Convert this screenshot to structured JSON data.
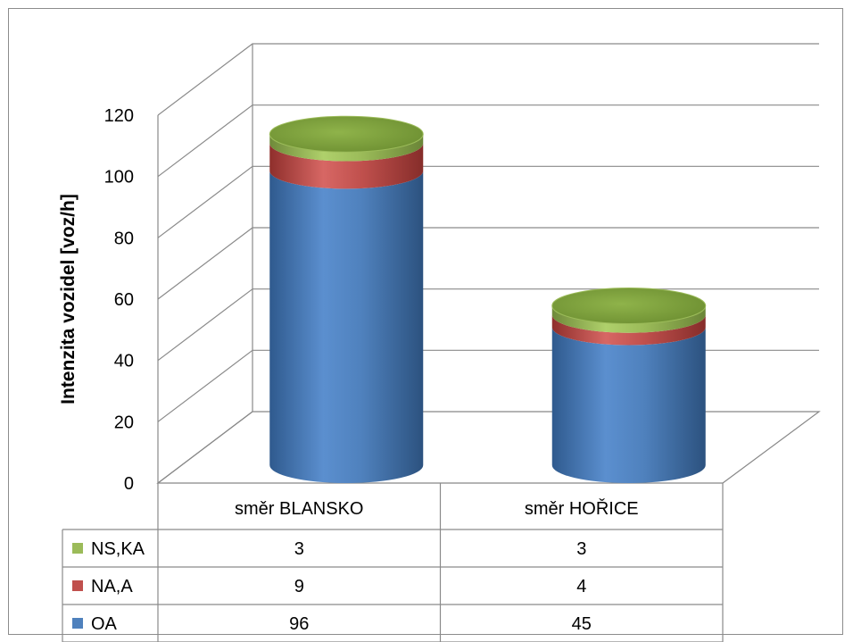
{
  "chart_data": {
    "type": "bar",
    "style": "3d-cylinder-stacked-with-data-table",
    "categories": [
      "směr BLANSKO",
      "směr HOŘICE"
    ],
    "series": [
      {
        "name": "OA",
        "values": [
          96,
          45
        ],
        "color": "#4f81bd"
      },
      {
        "name": "NA,A",
        "values": [
          9,
          4
        ],
        "color": "#c0504d"
      },
      {
        "name": "NS,KA",
        "values": [
          3,
          3
        ],
        "color": "#9bbb59"
      }
    ],
    "table_order": [
      "NS,KA",
      "NA,A",
      "OA"
    ],
    "ylabel": "Intenzita vozidel [voz/h]",
    "xlabel": "",
    "ylim": [
      0,
      120
    ],
    "yticks": [
      0,
      20,
      40,
      60,
      80,
      100,
      120
    ],
    "grid": true
  }
}
